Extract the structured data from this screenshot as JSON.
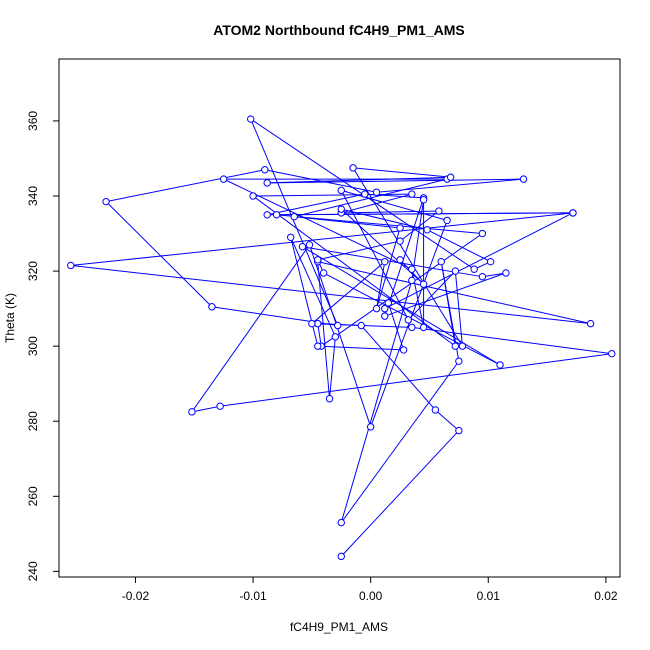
{
  "chart_data": {
    "type": "line",
    "title": "ATOM2 Northbound fC4H9_PM1_AMS",
    "xlabel": "fC4H9_PM1_AMS",
    "ylabel": "Theta (K)",
    "xlim": [
      -0.0265,
      0.0212
    ],
    "ylim": [
      238.5,
      376.5
    ],
    "xticks": [
      -0.02,
      -0.01,
      0.0,
      0.01,
      0.02
    ],
    "xtick_labels": [
      "-0.02",
      "-0.01",
      "0.00",
      "0.01",
      "0.02"
    ],
    "yticks": [
      240,
      260,
      280,
      300,
      320,
      340,
      360
    ],
    "ytick_labels": [
      "240",
      "260",
      "280",
      "300",
      "320",
      "340",
      "360"
    ],
    "grid": false,
    "colors": {
      "series": "#0000ff",
      "frame": "#000000",
      "background": "#ffffff"
    },
    "series": [
      {
        "points": [
          [
            -0.0025,
            244.0
          ],
          [
            0.0075,
            277.5
          ],
          [
            0.0055,
            283.0
          ],
          [
            -0.0008,
            305.5
          ],
          [
            -0.0045,
            306.0
          ],
          [
            -0.0042,
            300.0
          ],
          [
            0.0095,
            330.0
          ],
          [
            -0.008,
            335.0
          ],
          [
            0.0172,
            335.5
          ],
          [
            -0.0255,
            321.5
          ],
          [
            0.0187,
            306.0
          ],
          [
            -0.0045,
            322.5
          ],
          [
            -0.0035,
            286.0
          ],
          [
            -0.003,
            302.5
          ],
          [
            -0.0068,
            329.0
          ],
          [
            -0.0045,
            300.0
          ],
          [
            0.0028,
            299.0
          ],
          [
            0.0015,
            311.5
          ],
          [
            0.0012,
            310.0
          ],
          [
            0.0172,
            335.5
          ],
          [
            -0.0088,
            335.0
          ],
          [
            -0.0005,
            340.5
          ],
          [
            0.0045,
            339.5
          ],
          [
            0.0012,
            308.0
          ],
          [
            0.0115,
            319.5
          ],
          [
            0.0095,
            318.5
          ],
          [
            -0.0058,
            326.5
          ],
          [
            0.011,
            295.0
          ],
          [
            -0.004,
            319.5
          ],
          [
            -0.0045,
            323.0
          ],
          [
            0.0025,
            328.0
          ],
          [
            0.0058,
            336.0
          ],
          [
            -0.0025,
            335.5
          ],
          [
            0.0035,
            340.5
          ],
          [
            -0.01,
            340.0
          ],
          [
            0.0072,
            300.0
          ],
          [
            0.006,
            322.5
          ],
          [
            0.0075,
            296.0
          ],
          [
            -0.0025,
            253.0
          ],
          [
            0.0035,
            317.5
          ],
          [
            0.0045,
            339.0
          ],
          [
            0.0045,
            305.0
          ],
          [
            0.0035,
            320.5
          ],
          [
            -0.0125,
            344.5
          ],
          [
            0.0065,
            344.5
          ],
          [
            -0.0065,
            334.5
          ],
          [
            0.0025,
            331.5
          ],
          [
            0.0005,
            310.0
          ],
          [
            0.0012,
            322.5
          ],
          [
            -0.005,
            306.0
          ],
          [
            0.0035,
            305.0
          ],
          [
            0.0205,
            298.0
          ],
          [
            -0.0128,
            284.0
          ],
          [
            -0.0152,
            282.5
          ],
          [
            -0.0052,
            327.0
          ],
          [
            0.0,
            278.5
          ],
          [
            0.0065,
            333.5
          ],
          [
            -0.0025,
            341.5
          ],
          [
            0.0032,
            307.0
          ],
          [
            0.0072,
            320.0
          ],
          [
            0.0078,
            300.0
          ],
          [
            -0.0015,
            347.5
          ],
          [
            0.0068,
            345.0
          ],
          [
            -0.0088,
            343.5
          ],
          [
            0.013,
            344.5
          ],
          [
            0.0005,
            341.0
          ],
          [
            -0.009,
            347.0
          ],
          [
            -0.0225,
            338.5
          ],
          [
            -0.0135,
            310.5
          ],
          [
            -0.0028,
            305.5
          ],
          [
            -0.0102,
            360.5
          ],
          [
            0.0088,
            320.5
          ],
          [
            0.0102,
            322.5
          ],
          [
            0.0048,
            331.0
          ],
          [
            -0.0025,
            336.5
          ],
          [
            0.0045,
            316.5
          ],
          [
            0.0025,
            323.0
          ]
        ]
      }
    ]
  }
}
